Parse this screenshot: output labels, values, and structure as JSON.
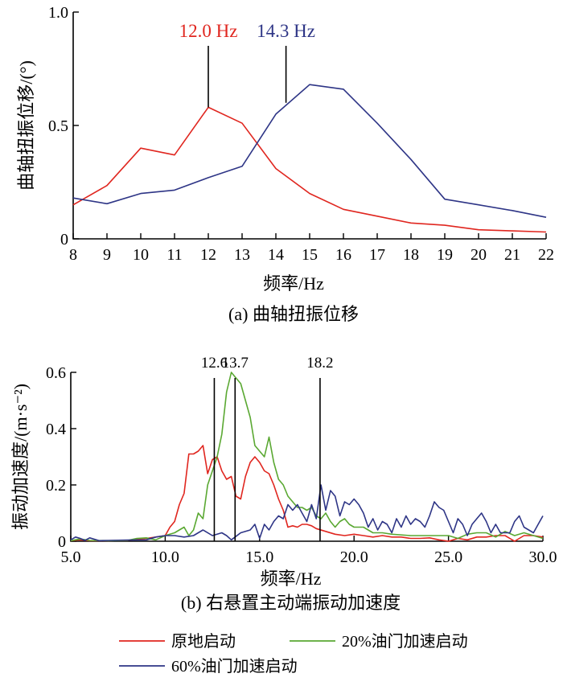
{
  "colors": {
    "red": "#e0261f",
    "blue": "#2e3586",
    "green": "#5aa832",
    "black": "#000000"
  },
  "chart_data": [
    {
      "type": "line",
      "caption": "(a) 曲轴扭振位移",
      "xlabel": "频率/Hz",
      "ylabel": "曲轴扭振位移/(°)",
      "xlim": [
        8,
        22
      ],
      "ylim": [
        0,
        1.0
      ],
      "xticks": [
        "8",
        "9",
        "10",
        "11",
        "12",
        "13",
        "14",
        "15",
        "16",
        "17",
        "18",
        "19",
        "20",
        "21",
        "22"
      ],
      "yticks": [
        "0",
        "0.5",
        "1.0"
      ],
      "annotations": [
        {
          "text": "12.0 Hz",
          "x": 12.0,
          "y": 0.58,
          "color": "red"
        },
        {
          "text": "14.3 Hz",
          "x": 14.3,
          "y": 0.6,
          "color": "blue"
        }
      ],
      "series": [
        {
          "name": "原地启动",
          "color": "red",
          "x": [
            8,
            9,
            10,
            11,
            12,
            13,
            14,
            15,
            16,
            17,
            18,
            19,
            20,
            21,
            22
          ],
          "y": [
            0.15,
            0.235,
            0.4,
            0.37,
            0.58,
            0.51,
            0.31,
            0.2,
            0.13,
            0.1,
            0.07,
            0.06,
            0.04,
            0.035,
            0.03
          ]
        },
        {
          "name": "60%油门加速启动",
          "color": "blue",
          "x": [
            8,
            9,
            10,
            11,
            12,
            13,
            14,
            15,
            16,
            17,
            18,
            19,
            20,
            21,
            22
          ],
          "y": [
            0.18,
            0.155,
            0.2,
            0.215,
            0.27,
            0.32,
            0.55,
            0.68,
            0.66,
            0.51,
            0.35,
            0.175,
            0.15,
            0.125,
            0.095
          ]
        }
      ]
    },
    {
      "type": "line",
      "caption": "(b) 右悬置主动端振动加速度",
      "xlabel": "频率/Hz",
      "ylabel": "振动加速度/(m·s⁻²)",
      "xlim": [
        5,
        30
      ],
      "ylim": [
        0,
        0.6
      ],
      "xticks": [
        "5.0",
        "10.0",
        "15.0",
        "20.0",
        "25.0",
        "30.0"
      ],
      "yticks": [
        "0",
        "0.2",
        "0.4",
        "0.6"
      ],
      "vlines": [
        {
          "text": "12.6",
          "x": 12.6
        },
        {
          "text": "13.7",
          "x": 13.7
        },
        {
          "text": "18.2",
          "x": 18.2
        }
      ],
      "legend": {
        "placement": "bottom",
        "entries": [
          {
            "label": "原地启动",
            "color": "red"
          },
          {
            "label": "20%油门加速启动",
            "color": "green"
          },
          {
            "label": "60%油门加速启动",
            "color": "blue"
          }
        ]
      },
      "series": [
        {
          "name": "原地启动",
          "color": "red",
          "x": [
            5,
            5.5,
            6,
            7,
            8,
            9,
            9.5,
            10,
            10.25,
            10.5,
            10.75,
            11,
            11.25,
            11.5,
            11.75,
            12,
            12.25,
            12.5,
            12.75,
            13,
            13.25,
            13.5,
            13.75,
            14,
            14.25,
            14.5,
            14.75,
            15,
            15.25,
            15.5,
            15.75,
            16,
            16.25,
            16.5,
            16.75,
            17,
            17.25,
            17.5,
            17.75,
            18,
            18.5,
            19,
            19.5,
            20,
            20.5,
            21,
            21.5,
            22,
            22.5,
            23,
            23.5,
            24,
            24.5,
            25,
            25.5,
            26,
            26.5,
            27,
            27.5,
            28,
            28.5,
            29,
            29.5,
            30
          ],
          "y": [
            0.002,
            0.005,
            0.002,
            0.002,
            0.003,
            0.01,
            0.015,
            0.02,
            0.05,
            0.07,
            0.13,
            0.17,
            0.31,
            0.31,
            0.32,
            0.34,
            0.24,
            0.29,
            0.3,
            0.25,
            0.22,
            0.23,
            0.16,
            0.15,
            0.23,
            0.28,
            0.3,
            0.28,
            0.25,
            0.24,
            0.2,
            0.15,
            0.11,
            0.05,
            0.055,
            0.05,
            0.06,
            0.06,
            0.055,
            0.045,
            0.035,
            0.025,
            0.02,
            0.025,
            0.02,
            0.015,
            0.02,
            0.015,
            0.015,
            0.01,
            0.01,
            0.012,
            0.005,
            0.0,
            0.01,
            0.005,
            0.015,
            0.015,
            0.02,
            0.02,
            0.0,
            0.02,
            0.02,
            0.015
          ]
        },
        {
          "name": "20%油门加速启动",
          "color": "green",
          "x": [
            5,
            5.5,
            6,
            7,
            8,
            8.5,
            9,
            9.5,
            10,
            10.5,
            11,
            11.25,
            11.5,
            11.75,
            12,
            12.25,
            12.5,
            12.75,
            13,
            13.25,
            13.5,
            13.75,
            14,
            14.25,
            14.5,
            14.75,
            15,
            15.25,
            15.5,
            15.75,
            16,
            16.25,
            16.5,
            16.75,
            17,
            17.25,
            17.5,
            17.75,
            18,
            18.25,
            18.5,
            18.75,
            19,
            19.25,
            19.5,
            19.75,
            20,
            20.5,
            21,
            21.5,
            22,
            23,
            24,
            25,
            25.5,
            26,
            26.5,
            27,
            27.5,
            28,
            28.5,
            29,
            29.5,
            30
          ],
          "y": [
            0.002,
            0.008,
            0.003,
            0.002,
            0.003,
            0.01,
            0.012,
            0.005,
            0.02,
            0.03,
            0.05,
            0.02,
            0.04,
            0.1,
            0.08,
            0.2,
            0.25,
            0.3,
            0.38,
            0.53,
            0.6,
            0.58,
            0.56,
            0.5,
            0.44,
            0.34,
            0.32,
            0.3,
            0.37,
            0.28,
            0.22,
            0.2,
            0.16,
            0.14,
            0.12,
            0.12,
            0.11,
            0.12,
            0.09,
            0.08,
            0.1,
            0.07,
            0.05,
            0.07,
            0.08,
            0.06,
            0.05,
            0.05,
            0.03,
            0.03,
            0.025,
            0.02,
            0.02,
            0.02,
            0.01,
            0.025,
            0.03,
            0.03,
            0.015,
            0.035,
            0.02,
            0.03,
            0.02,
            0.01
          ]
        },
        {
          "name": "60%油门加速启动",
          "color": "blue",
          "x": [
            5,
            5.25,
            5.5,
            5.75,
            6,
            6.5,
            7,
            8,
            9,
            9.5,
            10,
            10.5,
            11,
            11.5,
            12,
            12.5,
            13,
            13.25,
            13.5,
            14,
            14.5,
            14.75,
            15,
            15.25,
            15.5,
            15.75,
            16,
            16.25,
            16.5,
            16.75,
            17,
            17.25,
            17.5,
            17.75,
            18,
            18.25,
            18.5,
            18.75,
            19,
            19.25,
            19.5,
            19.75,
            20,
            20.25,
            20.5,
            20.75,
            21,
            21.25,
            21.5,
            21.75,
            22,
            22.25,
            22.5,
            22.75,
            23,
            23.25,
            23.5,
            23.75,
            24,
            24.25,
            24.5,
            24.75,
            25,
            25.25,
            25.5,
            25.75,
            26,
            26.25,
            26.5,
            26.75,
            27,
            27.25,
            27.5,
            27.75,
            28,
            28.25,
            28.5,
            28.75,
            29,
            29.5,
            29.75,
            30
          ],
          "y": [
            0.005,
            0.015,
            0.01,
            0.003,
            0.012,
            0.002,
            0.003,
            0.004,
            0.005,
            0.015,
            0.02,
            0.02,
            0.015,
            0.02,
            0.04,
            0.02,
            0.03,
            0.02,
            0.005,
            0.03,
            0.04,
            0.06,
            0.01,
            0.06,
            0.04,
            0.07,
            0.09,
            0.08,
            0.13,
            0.11,
            0.13,
            0.1,
            0.07,
            0.13,
            0.08,
            0.2,
            0.11,
            0.18,
            0.16,
            0.09,
            0.14,
            0.13,
            0.15,
            0.13,
            0.1,
            0.05,
            0.08,
            0.04,
            0.07,
            0.06,
            0.03,
            0.08,
            0.05,
            0.09,
            0.06,
            0.08,
            0.07,
            0.05,
            0.09,
            0.14,
            0.12,
            0.11,
            0.07,
            0.03,
            0.08,
            0.06,
            0.02,
            0.06,
            0.08,
            0.1,
            0.07,
            0.03,
            0.06,
            0.03,
            0.03,
            0.03,
            0.07,
            0.09,
            0.05,
            0.03,
            0.06,
            0.09
          ]
        }
      ]
    }
  ]
}
